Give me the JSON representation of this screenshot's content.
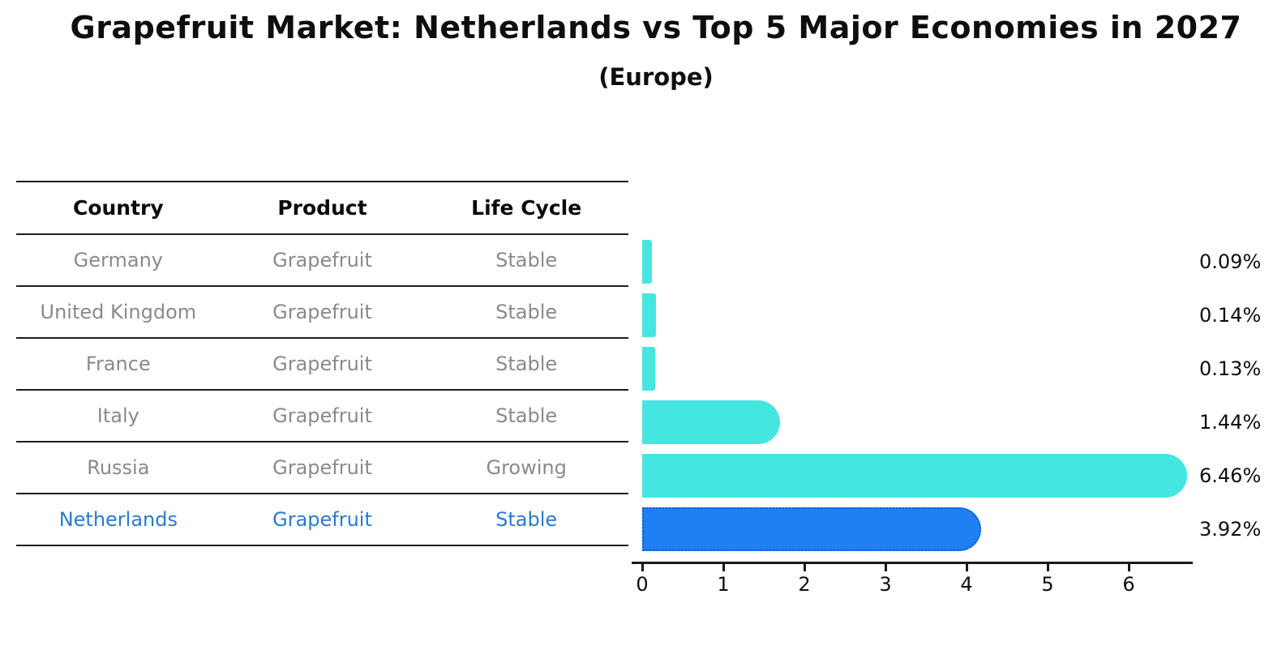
{
  "chart": {
    "title": "Grapefruit Market: Netherlands vs Top 5 Major Economies in 2027",
    "subtitle": "(Europe)"
  },
  "table": {
    "headers": [
      "Country",
      "Product",
      "Life Cycle"
    ],
    "rows": [
      {
        "country": "Germany",
        "product": "Grapefruit",
        "life_cycle": "Stable",
        "highlight": false
      },
      {
        "country": "United Kingdom",
        "product": "Grapefruit",
        "life_cycle": "Stable",
        "highlight": false
      },
      {
        "country": "France",
        "product": "Grapefruit",
        "life_cycle": "Stable",
        "highlight": false
      },
      {
        "country": "Italy",
        "product": "Grapefruit",
        "life_cycle": "Stable",
        "highlight": false
      },
      {
        "country": "Russia",
        "product": "Grapefruit",
        "life_cycle": "Growing",
        "highlight": false
      },
      {
        "country": "Netherlands",
        "product": "Grapefruit",
        "life_cycle": "Stable",
        "highlight": true
      }
    ]
  },
  "chart_data": {
    "type": "bar",
    "orientation": "horizontal",
    "title": "Grapefruit Market: Netherlands vs Top 5 Major Economies in 2027",
    "subtitle": "(Europe)",
    "categories": [
      "Germany",
      "United Kingdom",
      "France",
      "Italy",
      "Russia",
      "Netherlands"
    ],
    "values": [
      0.09,
      0.14,
      0.13,
      1.44,
      6.46,
      3.92
    ],
    "value_labels": [
      "0.09%",
      "0.14%",
      "0.13%",
      "1.44%",
      "6.46%",
      "3.92%"
    ],
    "x_ticks": [
      0,
      1,
      2,
      3,
      4,
      5,
      6
    ],
    "xlim": [
      0,
      6.8
    ],
    "grid": false,
    "legend": "none",
    "highlight_index": 5,
    "colors": {
      "bar": "#44e7e0",
      "highlight_bar": "#1e80f2",
      "highlight_border": "#1259c9",
      "highlight_text": "#2a7ad0",
      "table_text": "#8a8a8a",
      "text": "#0e0e0e"
    }
  }
}
